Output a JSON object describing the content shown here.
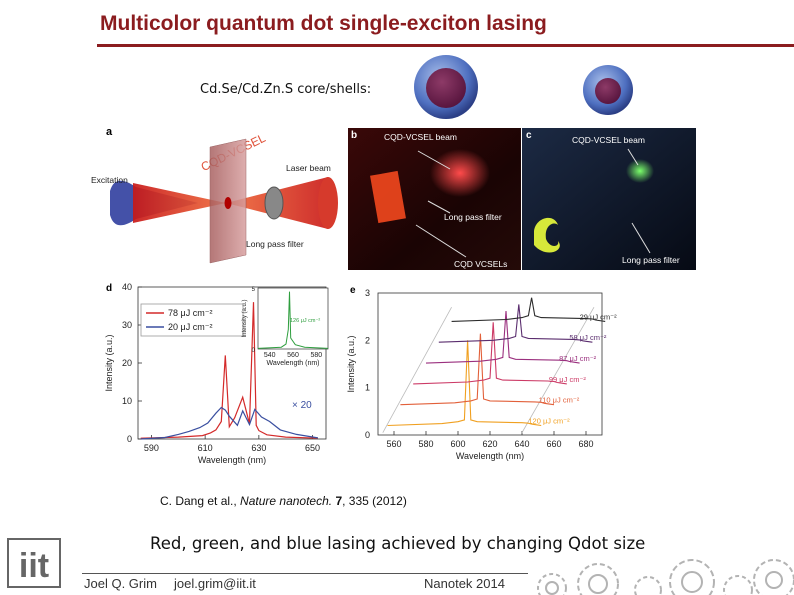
{
  "slide": {
    "title": "Multicolor quantum dot single-exciton lasing",
    "core_shell_label": "Cd.Se/Cd.Zn.S core/shells:",
    "citation_prefix": "C. Dang et al., ",
    "citation_journal": "Nature nanotech.",
    "citation_volume": "7",
    "citation_suffix": ", 335 (2012)",
    "caption": "Red, green, and blue lasing achieved by changing Qdot size"
  },
  "panels": {
    "a": {
      "letter": "a",
      "arc_label": "CQD-VCSEL",
      "excitation": "Excitation",
      "laser_beam": "Laser beam",
      "filter": "Long pass filter"
    },
    "b": {
      "letter": "b",
      "beam": "CQD-VCSEL beam",
      "filter": "Long pass filter",
      "vcsels": "CQD VCSELs"
    },
    "c": {
      "letter": "c",
      "beam": "CQD-VCSEL beam",
      "filter": "Long pass filter"
    },
    "d": {
      "letter": "d",
      "legend": [
        "78 μJ cm⁻²",
        "20 μJ cm⁻²"
      ],
      "multiplier": "× 20",
      "inset_label": "126 μJ cm⁻²",
      "inset_ylabel": "Intensity (a.u.)",
      "inset_xlabel": "Wavelength (nm)",
      "inset_xticks": [
        "540",
        "560",
        "580"
      ],
      "inset_yticks": [
        "0",
        "5"
      ]
    },
    "e": {
      "letter": "e",
      "fluences": [
        "29 μJ cm⁻²",
        "58 μJ cm⁻²",
        "87 μJ cm⁻²",
        "99 μJ cm⁻²",
        "110 μJ cm⁻²",
        "120 μJ cm⁻²"
      ]
    }
  },
  "chart_data": [
    {
      "type": "line",
      "panel": "d",
      "title": "",
      "xlabel": "Wavelength (nm)",
      "ylabel": "Intensity (a.u.)",
      "xlim": [
        585,
        655
      ],
      "ylim": [
        0,
        40
      ],
      "xticks": [
        "590",
        "610",
        "630",
        "650"
      ],
      "yticks": [
        "0",
        "10",
        "20",
        "30",
        "40"
      ],
      "series": [
        {
          "name": "78 μJ cm⁻²",
          "color": "#d42a2a",
          "x": [
            586,
            600,
            609,
            612,
            614,
            616,
            617.5,
            619,
            621,
            624,
            626.5,
            628,
            629,
            630,
            633,
            640,
            652
          ],
          "y": [
            0.2,
            0.5,
            0.9,
            1.6,
            2.4,
            4.6,
            22,
            3.2,
            5.6,
            11,
            4,
            36,
            3.6,
            2.2,
            1.1,
            0.5,
            0.2
          ]
        },
        {
          "name": "20 μJ cm⁻²",
          "color": "#3a4fa0",
          "x": [
            586,
            595,
            600,
            604,
            608,
            611,
            614,
            616,
            617.5,
            619,
            622,
            624,
            626.5,
            628.5,
            631,
            634,
            638,
            644,
            652
          ],
          "y": [
            0,
            0.4,
            1.2,
            2.0,
            3.0,
            4.2,
            6.8,
            8.3,
            7.6,
            6.0,
            3.6,
            7.4,
            3.8,
            7.8,
            5.8,
            4.6,
            2.4,
            1.2,
            0.3
          ]
        }
      ]
    },
    {
      "type": "line",
      "panel": "d-inset",
      "xlabel": "Wavelength (nm)",
      "ylabel": "Intensity (a.u.)",
      "xlim": [
        530,
        590
      ],
      "ylim": [
        0,
        5
      ],
      "series": [
        {
          "name": "126 μJ cm⁻²",
          "color": "#2e9e3e",
          "x": [
            530,
            550,
            554,
            556,
            557,
            558,
            562,
            570,
            590
          ],
          "y": [
            0.05,
            0.15,
            0.4,
            1.6,
            4.7,
            0.9,
            0.35,
            0.15,
            0.05
          ]
        }
      ]
    },
    {
      "type": "line",
      "panel": "e",
      "xlabel": "Wavelength (nm)",
      "ylabel": "Intensity (a.u.)",
      "xlim": [
        550,
        690
      ],
      "ylim": [
        0,
        3
      ],
      "xticks": [
        "560",
        "580",
        "600",
        "620",
        "640",
        "660",
        "680"
      ],
      "yticks": [
        "0",
        "1",
        "2",
        "3"
      ],
      "series": [
        {
          "name": "29 μJ cm⁻²",
          "color": "#2b2b2b"
        },
        {
          "name": "58 μJ cm⁻²",
          "color": "#5a2d6e"
        },
        {
          "name": "87 μJ cm⁻²",
          "color": "#9a2f7e"
        },
        {
          "name": "99 μJ cm⁻²",
          "color": "#cc3a66"
        },
        {
          "name": "110 μJ cm⁻²",
          "color": "#e2603a"
        },
        {
          "name": "120 μJ cm⁻²",
          "color": "#f0a020"
        }
      ]
    }
  ],
  "footer": {
    "author": "Joel Q. Grim",
    "email": "joel.grim@iit.it",
    "event": "Nanotek 2014",
    "logo_text": "iit"
  }
}
